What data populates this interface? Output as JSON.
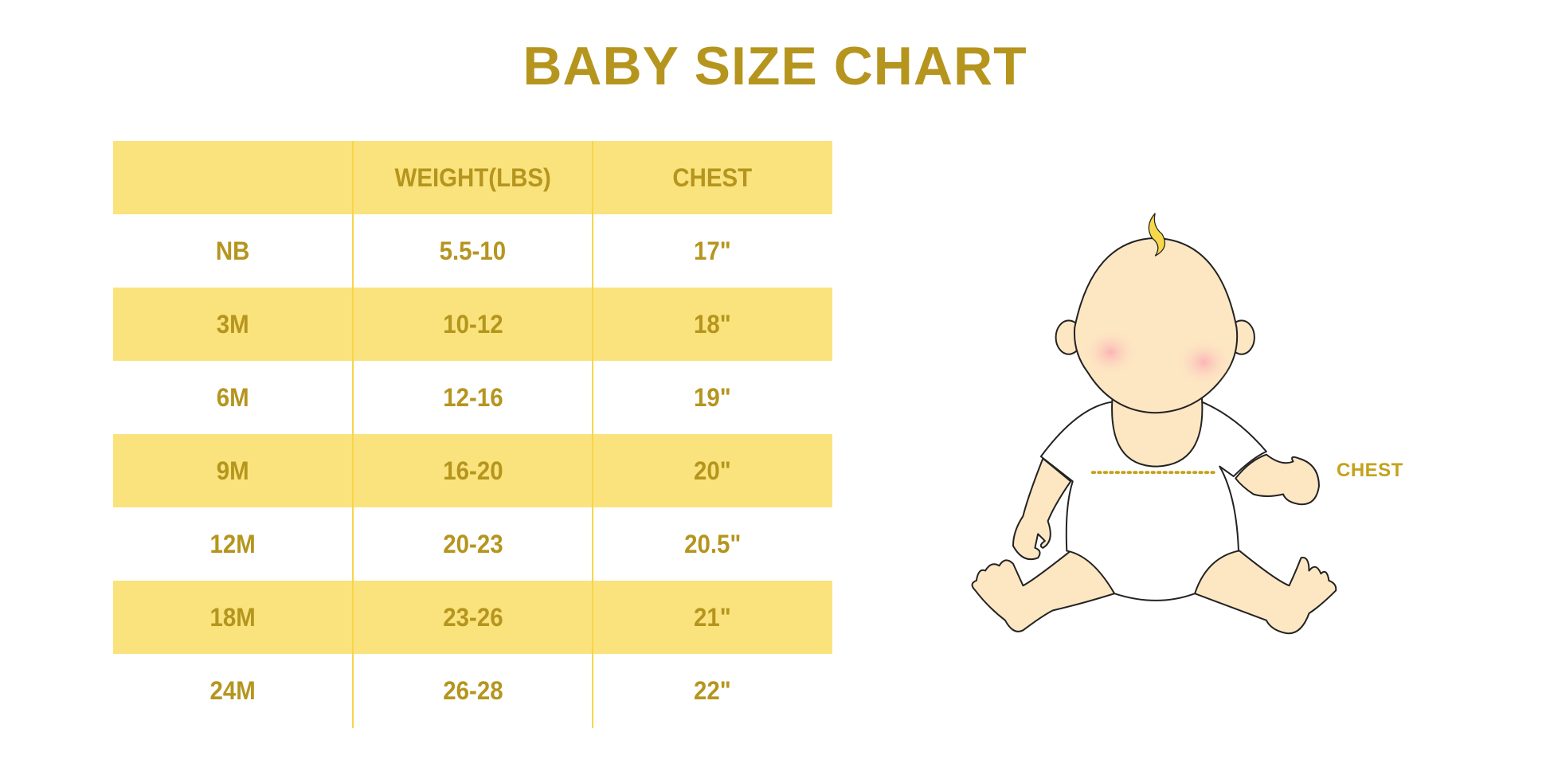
{
  "title": "BABY SIZE CHART",
  "table": {
    "headers": [
      "",
      "WEIGHT(LBS)",
      "CHEST"
    ],
    "rows": [
      [
        "NB",
        "5.5-10",
        "17\""
      ],
      [
        "3M",
        "10-12",
        "18\""
      ],
      [
        "6M",
        "12-16",
        "19\""
      ],
      [
        "9M",
        "16-20",
        "20\""
      ],
      [
        "12M",
        "20-23",
        "20.5\""
      ],
      [
        "18M",
        "23-26",
        "21\""
      ],
      [
        "24M",
        "26-28",
        "22\""
      ]
    ]
  },
  "illustration": {
    "measure_label": "CHEST"
  },
  "colors": {
    "text": "#b5951e",
    "stripe": "#fae37c",
    "divider": "#f7d54a",
    "skin": "#fde6c2"
  }
}
